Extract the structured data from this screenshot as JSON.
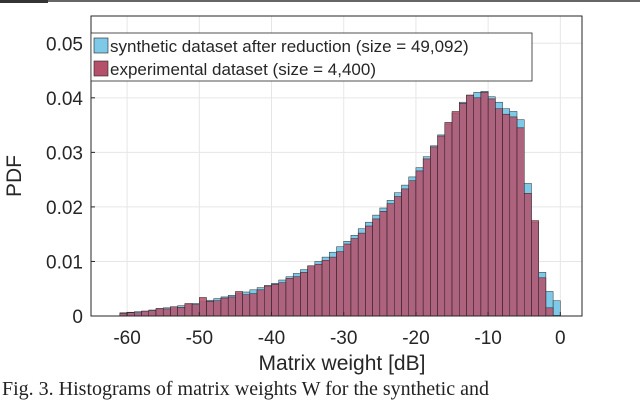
{
  "chart_data": {
    "type": "bar",
    "xlabel": "Matrix weight [dB]",
    "ylabel": "PDF",
    "xlim": [
      -65,
      3
    ],
    "ylim": [
      0,
      0.055
    ],
    "xticks": [
      -60,
      -50,
      -40,
      -30,
      -20,
      -10,
      0
    ],
    "xtick_labels": [
      "-60",
      "-50",
      "-40",
      "-30",
      "-20",
      "-10",
      "0"
    ],
    "yticks": [
      0,
      0.01,
      0.02,
      0.03,
      0.04,
      0.05
    ],
    "ytick_labels": [
      "0",
      "0.01",
      "0.02",
      "0.03",
      "0.04",
      "0.05"
    ],
    "grid": true,
    "legend_position": "top-left",
    "bin_width": 1,
    "bin_left_edges": [
      -61,
      -60,
      -59,
      -58,
      -57,
      -56,
      -55,
      -54,
      -53,
      -52,
      -51,
      -50,
      -49,
      -48,
      -47,
      -46,
      -45,
      -44,
      -43,
      -42,
      -41,
      -40,
      -39,
      -38,
      -37,
      -36,
      -35,
      -34,
      -33,
      -32,
      -31,
      -30,
      -29,
      -28,
      -27,
      -26,
      -25,
      -24,
      -23,
      -22,
      -21,
      -20,
      -19,
      -18,
      -17,
      -16,
      -15,
      -14,
      -13,
      -12,
      -11,
      -10,
      -9,
      -8,
      -7,
      -6,
      -5,
      -4,
      -3,
      -2,
      -1
    ],
    "series": [
      {
        "name": "synthetic dataset after reduction (size = 49,092)",
        "color": "#7ec8e8",
        "values": [
          0.0006,
          0.0007,
          0.0008,
          0.0009,
          0.0011,
          0.0013,
          0.0015,
          0.0017,
          0.0019,
          0.0021,
          0.0023,
          0.0026,
          0.0029,
          0.0032,
          0.0035,
          0.0038,
          0.0041,
          0.0044,
          0.0048,
          0.0052,
          0.0056,
          0.006,
          0.0066,
          0.0072,
          0.0078,
          0.0085,
          0.0092,
          0.01,
          0.0108,
          0.0117,
          0.0127,
          0.0137,
          0.0148,
          0.016,
          0.0172,
          0.0185,
          0.0198,
          0.0212,
          0.0226,
          0.024,
          0.0255,
          0.0272,
          0.0292,
          0.0312,
          0.0332,
          0.0352,
          0.0372,
          0.0392,
          0.0405,
          0.041,
          0.0412,
          0.0402,
          0.0392,
          0.038,
          0.0375,
          0.036,
          0.0243,
          0.0172,
          0.008,
          0.0045,
          0.0028
        ]
      },
      {
        "name": "experimental dataset (size = 4,400)",
        "color": "#b5506a",
        "values": [
          0.0005,
          0.0006,
          0.0006,
          0.0009,
          0.001,
          0.0014,
          0.0013,
          0.0017,
          0.0016,
          0.0023,
          0.0021,
          0.0034,
          0.0027,
          0.0028,
          0.0033,
          0.0035,
          0.0045,
          0.0039,
          0.0041,
          0.0048,
          0.0055,
          0.0058,
          0.0061,
          0.0069,
          0.0072,
          0.008,
          0.0092,
          0.0095,
          0.0102,
          0.0108,
          0.0118,
          0.0132,
          0.0142,
          0.0152,
          0.0165,
          0.0178,
          0.0192,
          0.0206,
          0.0219,
          0.0233,
          0.0248,
          0.0266,
          0.0288,
          0.031,
          0.033,
          0.0355,
          0.0375,
          0.039,
          0.0405,
          0.04,
          0.041,
          0.0398,
          0.038,
          0.037,
          0.0365,
          0.0345,
          0.0225,
          0.0175,
          0.007,
          0.0015,
          0.0001
        ]
      }
    ]
  },
  "colors": {
    "synthetic": "#7ec8e8",
    "experimental": "#b5506a",
    "grid": "#e6e6e6",
    "axis": "#262626"
  },
  "caption_text": "Fig. 3. Histograms of matrix weights W for the synthetic and"
}
